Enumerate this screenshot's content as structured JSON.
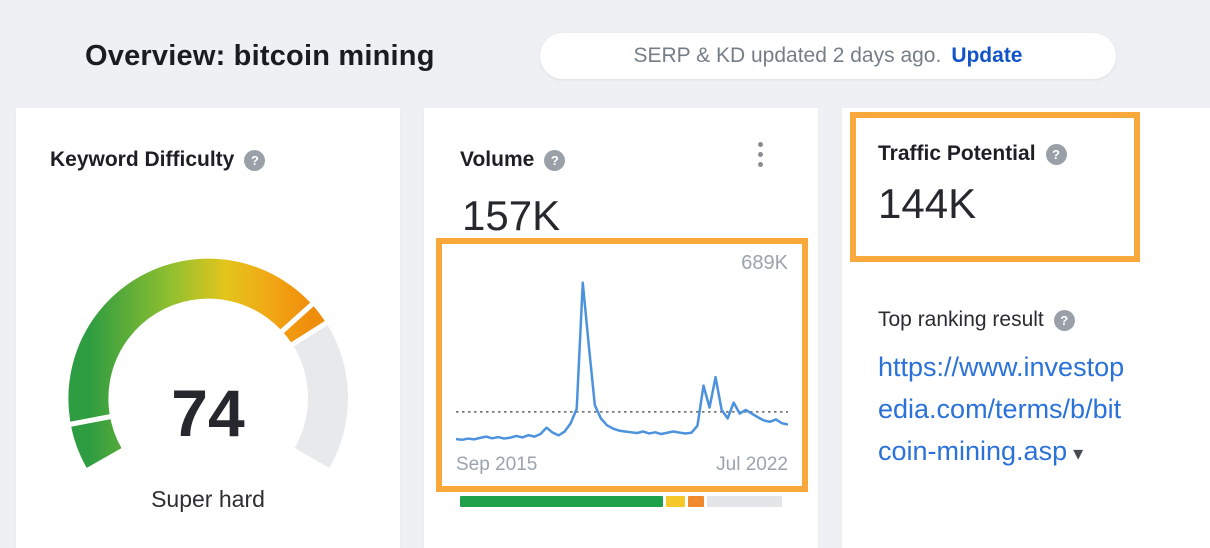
{
  "header": {
    "title": "Overview: bitcoin mining",
    "serp_status": "SERP & KD updated 2 days ago.",
    "update_label": "Update"
  },
  "icons": {
    "help": "?"
  },
  "colors": {
    "highlight_orange": "#F9A83B",
    "link_blue": "#2A72D9",
    "update_blue": "#1254C8",
    "chart_line_blue": "#4C92DE",
    "gauge_gray": "#E7E9EB"
  },
  "keyword_difficulty": {
    "title": "Keyword Difficulty",
    "value": "74",
    "max": 100,
    "label": "Super hard",
    "notch_values": [
      8,
      70,
      74
    ]
  },
  "volume": {
    "title": "Volume",
    "value": "157K",
    "chart": {
      "type": "line",
      "peak_label": "689K",
      "x_start_label": "Sep 2015",
      "x_end_label": "Jul 2022",
      "average_value_k": 157,
      "y_max_k": 700,
      "values_k": [
        45,
        42,
        47,
        44,
        50,
        55,
        48,
        53,
        47,
        51,
        58,
        52,
        61,
        55,
        66,
        92,
        72,
        60,
        76,
        110,
        170,
        689,
        430,
        185,
        130,
        102,
        88,
        80,
        76,
        73,
        70,
        76,
        68,
        73,
        66,
        71,
        76,
        72,
        68,
        71,
        100,
        265,
        175,
        300,
        165,
        130,
        195,
        150,
        165,
        150,
        135,
        122,
        116,
        126,
        110,
        105
      ]
    },
    "distribution_bar": {
      "segments": [
        {
          "name": "green",
          "color": "#1FA04B",
          "pct": 65
        },
        {
          "name": "yellow",
          "color": "#F7C82A",
          "pct": 6
        },
        {
          "name": "orange",
          "color": "#F08A2D",
          "pct": 5
        },
        {
          "name": "gray",
          "color": "#E3E5E8",
          "pct": 24
        }
      ]
    }
  },
  "traffic_potential": {
    "title": "Traffic Potential",
    "value": "144K",
    "top_ranking_label": "Top ranking result",
    "url_lines": [
      "https://www.investop",
      "edia.com/terms/b/bit",
      "coin-mining.asp"
    ],
    "caret": "▾"
  }
}
